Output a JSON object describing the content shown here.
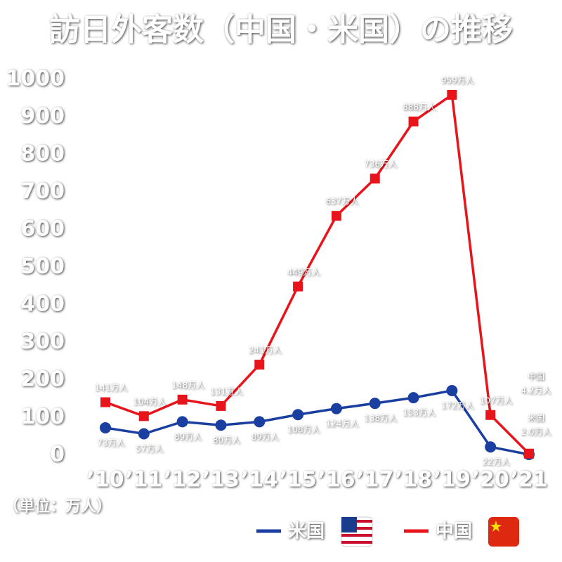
{
  "chart_data": {
    "type": "line",
    "title": "訪日外客数（中国・米国）の推移",
    "unit_note": "（単位：万人）",
    "categories": [
      "’10",
      "’11",
      "’12",
      "’13",
      "’14",
      "’15",
      "’16",
      "’17",
      "’18",
      "’19",
      "’20",
      "’21"
    ],
    "series": [
      {
        "name": "米国",
        "color": "#1a3fa0",
        "marker": "circle",
        "values": [
          73,
          57,
          89,
          80,
          89,
          108,
          124,
          138,
          153,
          172,
          22,
          2.0
        ],
        "value_labels": [
          "73万人",
          "57万人",
          "89万人",
          "80万人",
          "89万人",
          "108万人",
          "124万人",
          "138万人",
          "153万人",
          "172万人",
          "22万人",
          "米国 2.0万人"
        ]
      },
      {
        "name": "中国",
        "color": "#e8141b",
        "marker": "square",
        "values": [
          141,
          104,
          148,
          131,
          241,
          449,
          637,
          736,
          888,
          959,
          107,
          4.2
        ],
        "value_labels": [
          "141万人",
          "104万人",
          "148万人",
          "131万人",
          "241万人",
          "449万人",
          "637万人",
          "736万人",
          "888万人",
          "959万人",
          "107万人",
          "中国 4.2万人"
        ]
      }
    ],
    "ylim": [
      0,
      1000
    ],
    "yticks": [
      0,
      100,
      200,
      300,
      400,
      500,
      600,
      700,
      800,
      900,
      1000
    ],
    "grid": false
  }
}
